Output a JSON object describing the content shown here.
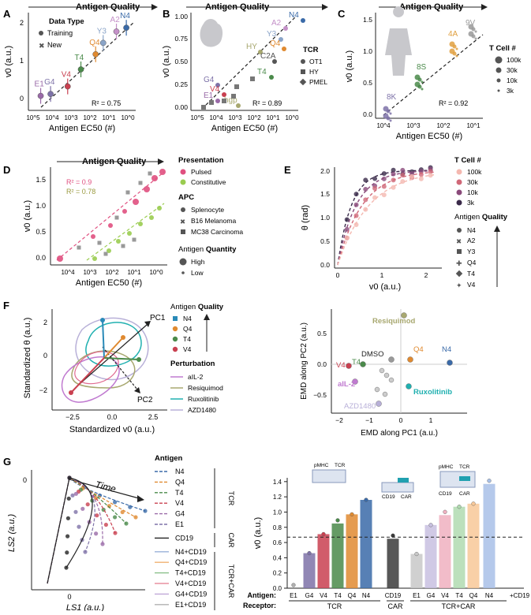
{
  "panel_letters": [
    "A",
    "B",
    "C",
    "D",
    "E",
    "F",
    "G"
  ],
  "colors": {
    "E1": "#9a6aa8",
    "G4": "#7e72a8",
    "V4": "#c94050",
    "T4": "#4a8a4a",
    "Q4": "#e08a30",
    "Y3": "#8aa4c8",
    "A2": "#c490c8",
    "N4": "#3a6aa8",
    "axis": "#222222",
    "dashed_fit": "#222222",
    "pulsed": "#e05080",
    "constitutive": "#9acc50",
    "aIL2": "#c07ad0",
    "resiquimod": "#a8a870",
    "ruxolitinib": "#20b0b0",
    "azd1480": "#b8b0d8",
    "cd19": "#3a3a3a",
    "tcellcount_100k": "#f4b8b0",
    "tcellcount_30k": "#d06878",
    "tcellcount_10k": "#8a4a7a",
    "tcellcount_3k": "#3a2a4a"
  },
  "chart_data": [
    {
      "id": "A",
      "type": "scatter",
      "title": "Antigen Quality",
      "xlabel": "Antigen EC50 (#)",
      "ylabel": "v0 (a.u.)",
      "x_scale": "log_reversed",
      "x_ticks": [
        "10^5",
        "10^4",
        "10^3",
        "10^2",
        "10^1",
        "10^0"
      ],
      "y_ticks": [
        "0",
        "1",
        "2"
      ],
      "ylim": [
        -0.2,
        2.3
      ],
      "annotation": "R² = 0.75",
      "legend_title": "Data Type",
      "legend": [
        "Training",
        "New"
      ],
      "point_labels": [
        {
          "text": "E1",
          "x": 40000,
          "y": 0.05
        },
        {
          "text": "G4",
          "x": 12000,
          "y": 0.1
        },
        {
          "text": "V4",
          "x": 1500,
          "y": 0.3
        },
        {
          "text": "T4",
          "x": 300,
          "y": 0.75
        },
        {
          "text": "Q4",
          "x": 50,
          "y": 1.15
        },
        {
          "text": "Y3",
          "x": 20,
          "y": 1.45
        },
        {
          "text": "A2",
          "x": 4,
          "y": 1.75
        },
        {
          "text": "N4",
          "x": 1.2,
          "y": 1.85
        }
      ],
      "fit_line": {
        "x": [
          100000,
          1
        ],
        "y": [
          -0.15,
          2.0
        ]
      }
    },
    {
      "id": "B",
      "type": "scatter",
      "title": "Antigen Quality",
      "xlabel": "Antigen EC50 (#)",
      "ylabel": "v0 (a.u.)",
      "x_ticks": [
        "10^5",
        "10^4",
        "10^3",
        "10^2",
        "10^1",
        "10^0"
      ],
      "y_ticks": [
        "0.00",
        "0.25",
        "0.50",
        "0.75",
        "1.00"
      ],
      "annotation": "R² = 0.89",
      "legend_title": "TCR",
      "legend": [
        "OT1",
        "HY",
        "PMEL"
      ],
      "labels": [
        "A2",
        "N4",
        "Y3",
        "Q4",
        "HY",
        "C2A",
        "T4",
        "G4",
        "V4",
        "E1",
        "hgp"
      ]
    },
    {
      "id": "C",
      "type": "scatter",
      "title": "Antigen Quality",
      "xlabel": "Antigen EC50 (#)",
      "ylabel": "v0 (a.u.)",
      "x_ticks": [
        "10^4",
        "10^3",
        "10^2",
        "10^1"
      ],
      "y_ticks": [
        "0.0",
        "0.5",
        "1.0",
        "1.5"
      ],
      "annotation": "R² = 0.92",
      "legend_title": "T Cell #",
      "legend": [
        "100k",
        "30k",
        "10k",
        "3k"
      ],
      "labels": [
        "9V",
        "4A",
        "8S",
        "8K"
      ]
    },
    {
      "id": "D",
      "type": "scatter",
      "title": "Antigen Quality",
      "xlabel": "Antigen EC50 (#)",
      "ylabel": "v0 (a.u.)",
      "x_ticks": [
        "10^4",
        "10^3",
        "10^2",
        "10^1",
        "10^0"
      ],
      "y_ticks": [
        "0.0",
        "0.5",
        "1.0",
        "1.5"
      ],
      "annotations": [
        "R² = 0.9",
        "R² = 0.78"
      ],
      "legend_presentation_title": "Presentation",
      "legend_presentation": [
        "Pulsed",
        "Constitutive"
      ],
      "legend_apc_title": "APC",
      "legend_apc": [
        "Splenocyte",
        "B16 Melanoma",
        "MC38 Carcinoma"
      ],
      "legend_quantity_title_prefix": "Antigen ",
      "legend_quantity_title_bold": "Quantity",
      "legend_quantity": [
        "High",
        "Low"
      ]
    },
    {
      "id": "E",
      "type": "line",
      "xlabel": "v0 (a.u.)",
      "ylabel": "θ (rad)",
      "x_ticks": [
        "0",
        "1",
        "2"
      ],
      "y_ticks": [
        "0.0",
        "0.5",
        "1.0",
        "1.5",
        "2.0"
      ],
      "legend_title": "T Cell #",
      "legend": [
        "100k",
        "30k",
        "10k",
        "3k"
      ],
      "legend2_title_prefix": "Antigen ",
      "legend2_title_bold": "Quality",
      "legend2": [
        "N4",
        "A2",
        "Y3",
        "Q4",
        "T4",
        "V4"
      ]
    },
    {
      "id": "F_left",
      "type": "scatter",
      "xlabel": "Standardized v0 (a.u.)",
      "ylabel": "Standardized θ (a.u.)",
      "x_ticks": [
        "−2.5",
        "0.0",
        "2.5"
      ],
      "y_ticks": [
        "−2",
        "0",
        "2"
      ],
      "axis_labels": [
        "PC1",
        "PC2"
      ],
      "legend_title_prefix": "Antigen ",
      "legend_title_bold": "Quality",
      "legend": [
        "N4",
        "Q4",
        "T4",
        "V4"
      ],
      "perturbation_title": "Perturbation",
      "perturbation": [
        "aIL-2",
        "Resiquimod",
        "Ruxolitinib",
        "AZD1480"
      ]
    },
    {
      "id": "F_right",
      "type": "scatter",
      "xlabel": "EMD along PC1 (a.u.)",
      "ylabel": "EMD along PC2 (a.u.)",
      "x_ticks": [
        "−2",
        "−1",
        "0",
        "1"
      ],
      "y_ticks": [
        "−0.5",
        "0.0",
        "0.5"
      ],
      "labels": [
        "Resiquimod",
        "DMSO",
        "Q4",
        "N4",
        "V4",
        "T4",
        "aIL-2",
        "Ruxolitinib",
        "AZD1480"
      ]
    },
    {
      "id": "G_left",
      "type": "line",
      "xlabel": "LS1 (a.u.)",
      "ylabel": "LS2 (a.u.)",
      "x_ticks": [
        "0"
      ],
      "y_ticks": [
        "0"
      ],
      "annotation": "Time",
      "legend_title": "Antigen",
      "legend": [
        "N4",
        "Q4",
        "T4",
        "V4",
        "G4",
        "E1",
        "CD19",
        "N4+CD19",
        "Q4+CD19",
        "T4+CD19",
        "V4+CD19",
        "G4+CD19",
        "E1+CD19"
      ],
      "groups": [
        "TCR",
        "CAR",
        "TCR+CAR"
      ]
    },
    {
      "id": "G_right",
      "type": "bar",
      "ylabel": "v0 (a.u.)",
      "y_ticks": [
        "0.0",
        "0.2",
        "0.4",
        "0.6",
        "0.8",
        "1.0",
        "1.2",
        "1.4"
      ],
      "ylim": [
        0,
        1.45
      ],
      "threshold": 0.67,
      "row_labels": [
        "Antigen:",
        "Receptor:"
      ],
      "categories": [
        "E1",
        "G4",
        "V4",
        "T4",
        "Q4",
        "N4",
        "CD19",
        "E1",
        "G4",
        "V4",
        "T4",
        "Q4",
        "N4"
      ],
      "trailing_label": "+CD19",
      "receptor_groups": [
        "TCR",
        "CAR",
        "TCR+CAR"
      ],
      "values": [
        0.0,
        0.46,
        0.71,
        0.85,
        0.97,
        1.16,
        0.65,
        0.45,
        0.83,
        0.96,
        1.07,
        1.11,
        1.37
      ],
      "schematic_labels": [
        "pMHC",
        "TCR",
        "CD19",
        "CAR",
        "pMHC",
        "TCR",
        "CD19",
        "CAR"
      ]
    }
  ]
}
